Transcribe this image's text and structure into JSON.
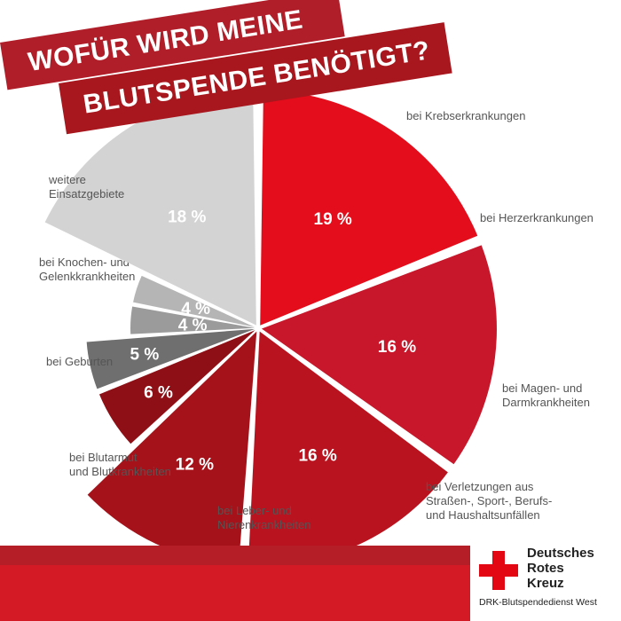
{
  "title": {
    "line1": "WOFÜR WIRD MEINE",
    "line2": "BLUTSPENDE BENÖTIGT?"
  },
  "chart_data": {
    "type": "pie",
    "slices": [
      {
        "label": [
          "bei Krebserkrankungen"
        ],
        "value": 19,
        "display": "19 %",
        "color": "#e30d1b"
      },
      {
        "label": [
          "bei Herzerkrankungen"
        ],
        "value": 16,
        "display": "16 %",
        "color": "#c8172a"
      },
      {
        "label": [
          "bei Magen- und",
          "Darmkrankheiten"
        ],
        "value": 16,
        "display": "16 %",
        "color": "#b8131f"
      },
      {
        "label": [
          "bei Verletzungen aus",
          "Straßen-, Sport-, Berufs-",
          "und Haushaltsunfällen"
        ],
        "value": 12,
        "display": "12 %",
        "color": "#a5121a"
      },
      {
        "label": [
          "bei Leber- und",
          "Nierenkrankheiten"
        ],
        "value": 6,
        "display": "6 %",
        "color": "#8e1016"
      },
      {
        "label": [
          "bei Blutarmut",
          "und Blutkrankheiten"
        ],
        "value": 5,
        "display": "5 %",
        "color": "#6f6f6f"
      },
      {
        "label": [
          "bei Geburten"
        ],
        "value": 4,
        "display": "4 %",
        "color": "#9b9b9b"
      },
      {
        "label": [
          "bei Knochen- und",
          "Gelenkkrankheiten"
        ],
        "value": 4,
        "display": "4 %",
        "color": "#b5b5b5"
      },
      {
        "label": [
          "weitere",
          "Einsatzgebiete"
        ],
        "value": 18,
        "display": "18 %",
        "color": "#d3d3d3"
      }
    ]
  },
  "logo": {
    "line1": "Deutsches",
    "line2": "Rotes",
    "line3": "Kreuz",
    "subtitle": "DRK-Blutspendedienst West",
    "color": "#e30613"
  },
  "colors": {
    "banner_dark": "#a8161e",
    "banner_light": "#b01e2a",
    "footer_red": "#d41a25"
  }
}
